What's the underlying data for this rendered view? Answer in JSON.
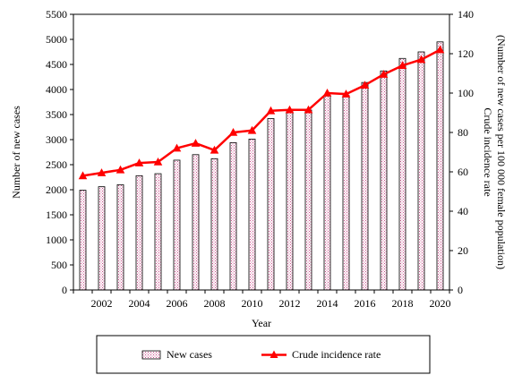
{
  "chart_data": {
    "type": "bar",
    "x": [
      2001,
      2002,
      2003,
      2004,
      2005,
      2006,
      2007,
      2008,
      2009,
      2010,
      2011,
      2012,
      2013,
      2014,
      2015,
      2016,
      2017,
      2018,
      2019,
      2020
    ],
    "x_tick_labels": [
      "2002",
      "2004",
      "2006",
      "2008",
      "2010",
      "2012",
      "2014",
      "2016",
      "2018",
      "2020"
    ],
    "xlabel": "Year",
    "ylabel": "Number of new cases",
    "y2label_line1": "Crude incidence rate",
    "y2label_line2": "(Number of new cases per 100 000 female population)",
    "ylim": [
      0,
      5500
    ],
    "y2lim": [
      0,
      140
    ],
    "y_ticks": [
      0,
      500,
      1000,
      1500,
      2000,
      2500,
      3000,
      3500,
      4000,
      4500,
      5000,
      5500
    ],
    "y2_ticks": [
      0,
      20,
      40,
      60,
      80,
      100,
      120,
      140
    ],
    "grid": false,
    "legend_position": "bottom",
    "series": [
      {
        "name": "New cases",
        "type": "bar",
        "axis": "left",
        "color": "#c94f8a",
        "values": [
          1990,
          2060,
          2100,
          2280,
          2320,
          2590,
          2700,
          2620,
          2940,
          3010,
          3420,
          3560,
          3590,
          3870,
          3880,
          4140,
          4370,
          4620,
          4750,
          4950
        ]
      },
      {
        "name": "Crude incidence rate",
        "type": "line",
        "axis": "right",
        "color": "#ff0000",
        "values": [
          58,
          59.5,
          61,
          64.5,
          65,
          72,
          74.5,
          71,
          80,
          81,
          91,
          91.5,
          91.5,
          100,
          99.5,
          104,
          109.5,
          114,
          117,
          122
        ]
      }
    ]
  }
}
